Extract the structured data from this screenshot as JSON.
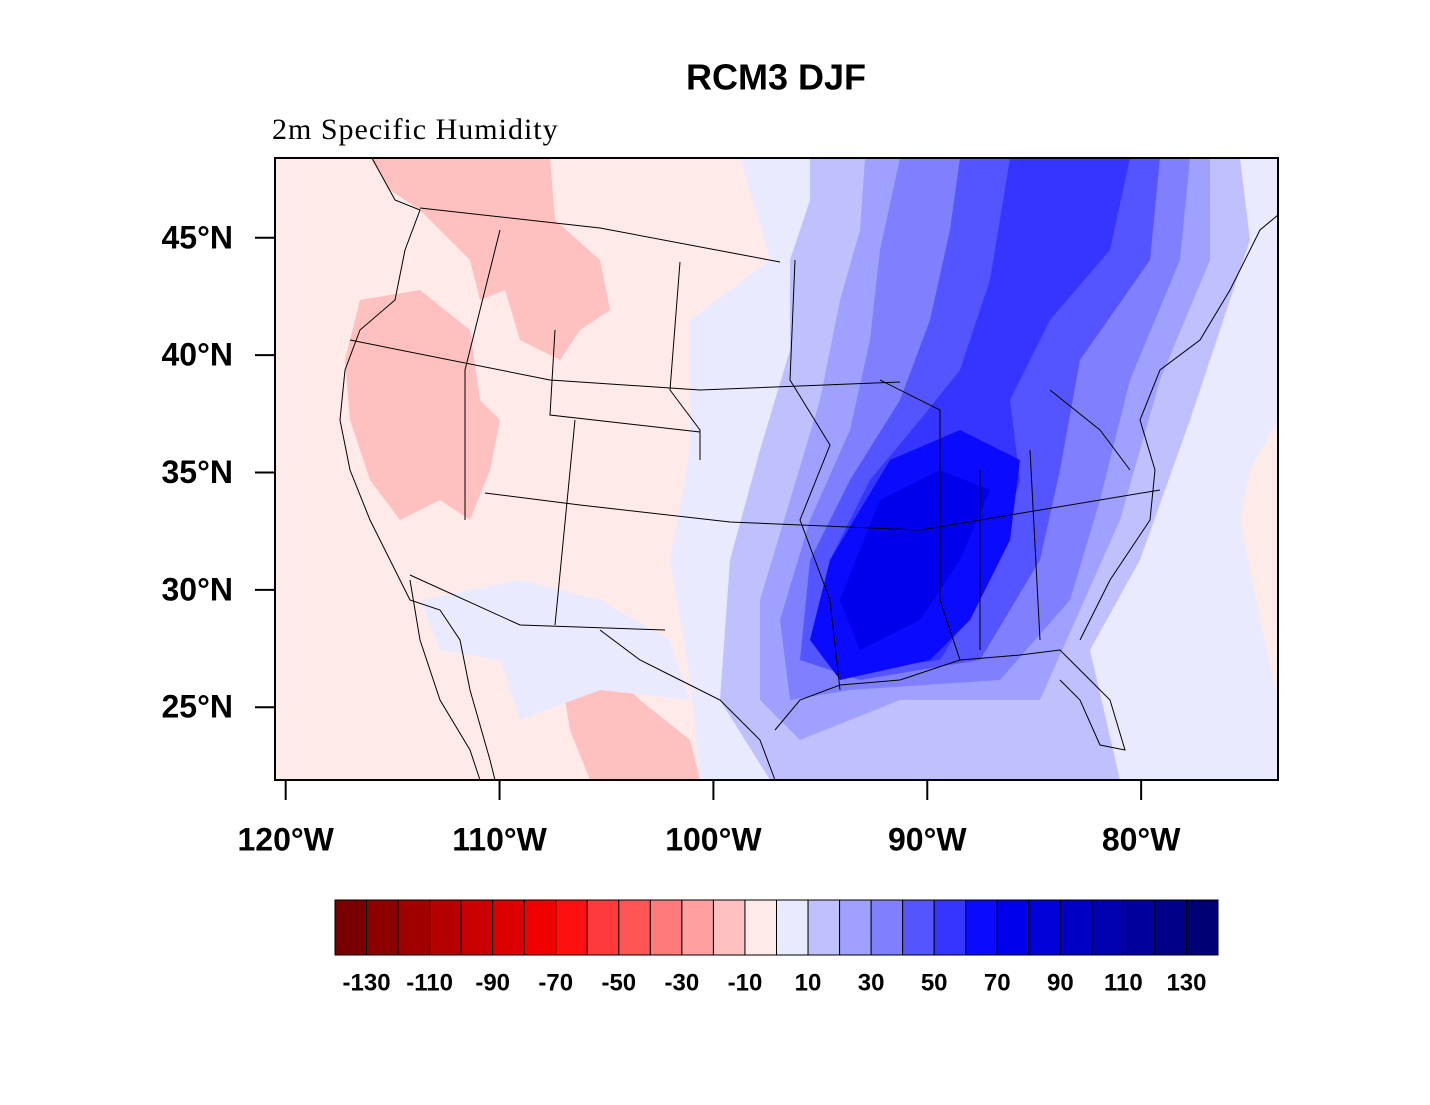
{
  "title": "RCM3 DJF",
  "subtitle": "2m Specific Humidity",
  "map": {
    "lonlim": [
      -120.5,
      -73.6
    ],
    "latlim": [
      21.9,
      48.4
    ],
    "lat_ticks": [
      {
        "value": 45,
        "label": "45°N"
      },
      {
        "value": 40,
        "label": "40°N"
      },
      {
        "value": 35,
        "label": "35°N"
      },
      {
        "value": 30,
        "label": "30°N"
      },
      {
        "value": 25,
        "label": "25°N"
      }
    ],
    "lon_ticks": [
      {
        "value": -120,
        "label": "120°W"
      },
      {
        "value": -110,
        "label": "110°W"
      },
      {
        "value": -100,
        "label": "100°W"
      },
      {
        "value": -90,
        "label": "90°W"
      },
      {
        "value": -80,
        "label": "80°W"
      }
    ]
  },
  "colorbar": {
    "levels": [
      -130,
      -120,
      -110,
      -100,
      -90,
      -80,
      -70,
      -60,
      -50,
      -40,
      -30,
      -20,
      -10,
      0,
      10,
      20,
      30,
      40,
      50,
      60,
      70,
      80,
      90,
      100,
      110,
      120,
      130
    ],
    "colors": [
      "#780000",
      "#8c0000",
      "#a00000",
      "#b40000",
      "#c80000",
      "#dc0000",
      "#f00000",
      "#ff1010",
      "#ff3a3a",
      "#ff5555",
      "#ff7a7a",
      "#ffa0a0",
      "#ffc0c0",
      "#ffeaea",
      "#eaeaff",
      "#c0c0ff",
      "#a0a0ff",
      "#8080ff",
      "#5555ff",
      "#3535ff",
      "#0a0aff",
      "#0000eb",
      "#0000d8",
      "#0000c4",
      "#0000b0",
      "#00009c",
      "#000088",
      "#000074"
    ],
    "labels": [
      -130,
      -110,
      -90,
      -70,
      -50,
      -30,
      -10,
      10,
      30,
      50,
      70,
      90,
      110,
      130
    ]
  }
}
